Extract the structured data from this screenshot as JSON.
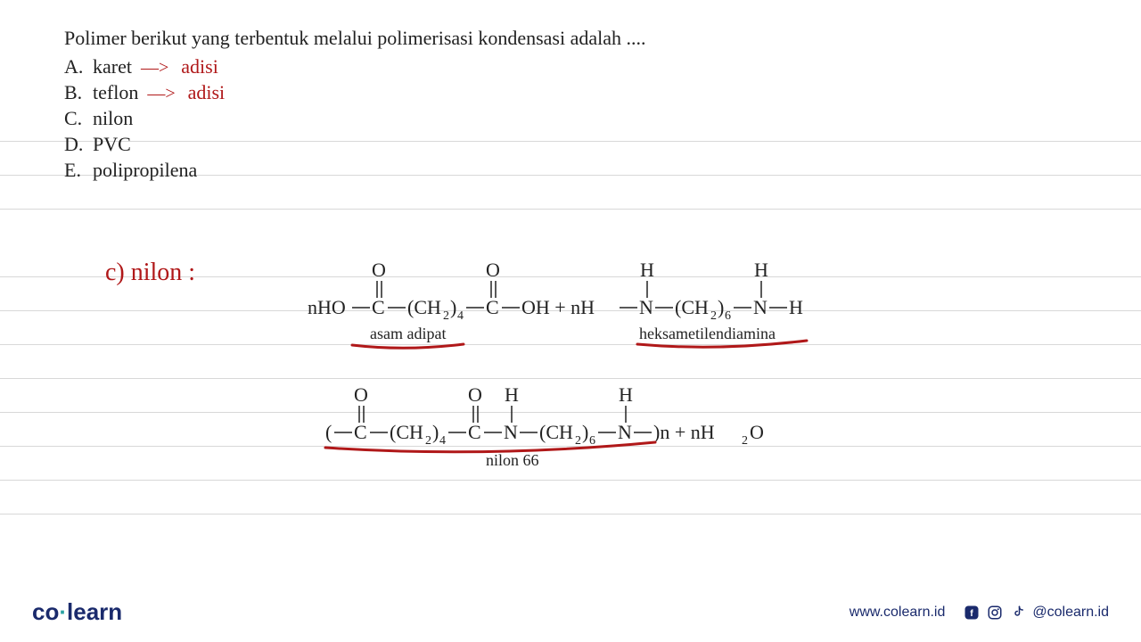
{
  "question": "Polimer berikut  yang terbentuk melalui polimerisasi kondensasi adalah ....",
  "options": [
    {
      "letter": "A.",
      "text": "karet",
      "annotation": "adisi",
      "has_arrow": true
    },
    {
      "letter": "B.",
      "text": "teflon",
      "annotation": "adisi",
      "has_arrow": true
    },
    {
      "letter": "C.",
      "text": "nilon",
      "annotation": "",
      "has_arrow": false
    },
    {
      "letter": "D.",
      "text": "PVC",
      "annotation": "",
      "has_arrow": false
    },
    {
      "letter": "E.",
      "text": "polipropilena",
      "annotation": "",
      "has_arrow": false
    }
  ],
  "answer_label": "c) nilon :",
  "chem": {
    "reactant1_label": "asam adipat",
    "reactant2_label": "heksametilendiamina",
    "product_label": "nilon 66",
    "text_color": "#222222",
    "font_family": "Times New Roman, serif",
    "font_size_formula": 22,
    "font_size_label": 18,
    "underline_color": "#b01819"
  },
  "ruled": {
    "color": "#d8d8d8",
    "positions": [
      158,
      196,
      234,
      310,
      348,
      386,
      424,
      462,
      500,
      538,
      576
    ]
  },
  "footer": {
    "logo_co": "co",
    "logo_learn": "learn",
    "url": "www.colearn.id",
    "handle": "@colearn.id",
    "brand_color": "#1a2a6c",
    "accent_color": "#2aa3a3"
  }
}
